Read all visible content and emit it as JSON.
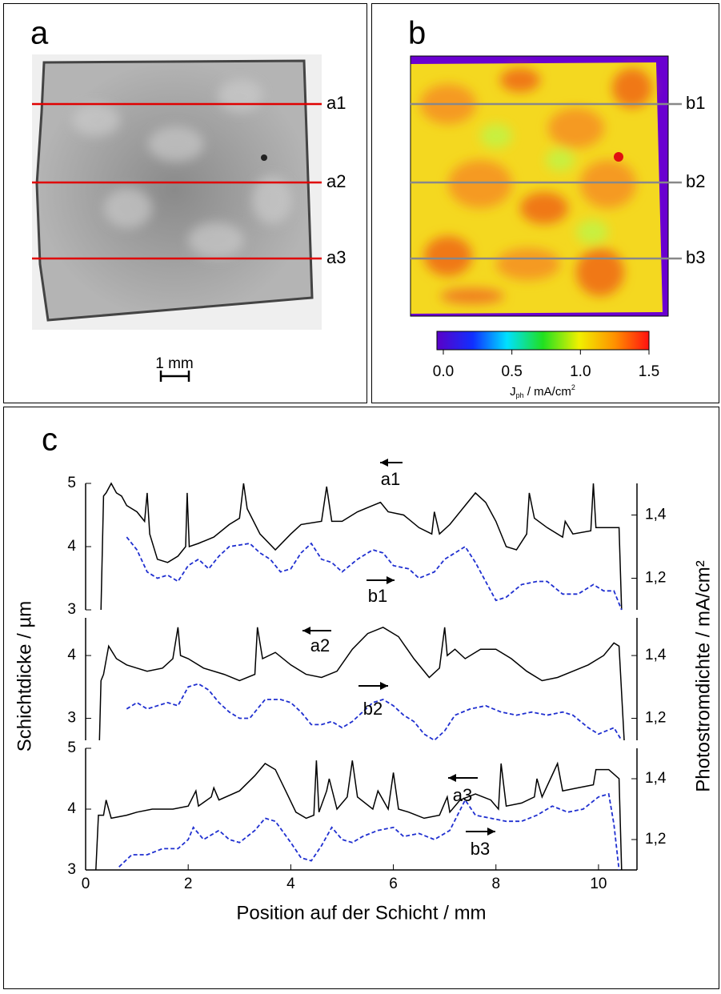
{
  "panel_a": {
    "label": "a",
    "lines": [
      "a1",
      "a2",
      "a3"
    ],
    "scale_bar": "1 mm"
  },
  "panel_b": {
    "label": "b",
    "lines": [
      "b1",
      "b2",
      "b3"
    ],
    "colorbar": {
      "clim": [
        0,
        1.5
      ],
      "ticks": [
        {
          "value": 0,
          "label": "0.0"
        },
        0.5,
        {
          "value": 1,
          "label": "1.0"
        },
        1.5
      ],
      "label_parts": [
        "J",
        "ph",
        " /  mA/cm",
        "2"
      ]
    }
  },
  "panel_c_label": "c",
  "chart_data": [
    {
      "type": "line",
      "xlim": [
        0,
        10.75
      ],
      "ylim": [
        3,
        5
      ],
      "yticks": [
        3,
        4,
        5
      ],
      "y2lim": [
        1.1,
        1.5
      ],
      "y2ticks": [
        {
          "value": 1.2,
          "label": "1,2"
        },
        {
          "value": 1.4,
          "label": "1,4"
        }
      ],
      "annotations": [
        "a1",
        "b1"
      ],
      "series": [
        {
          "color": "#000000",
          "style": "solid",
          "x": [
            0.3,
            0.35,
            0.4,
            0.5,
            0.6,
            0.7,
            0.8,
            1.0,
            1.15,
            1.2,
            1.25,
            1.4,
            1.6,
            1.8,
            1.95,
            1.98,
            2.02,
            2.2,
            2.5,
            2.8,
            3.0,
            3.08,
            3.15,
            3.4,
            3.7,
            4.0,
            4.2,
            4.6,
            4.7,
            4.8,
            5.0,
            5.3,
            5.6,
            5.75,
            5.9,
            6.2,
            6.5,
            6.75,
            6.8,
            6.9,
            7.1,
            7.4,
            7.6,
            7.8,
            8.0,
            8.2,
            8.4,
            8.6,
            8.65,
            8.75,
            9.0,
            9.3,
            9.35,
            9.5,
            9.85,
            9.9,
            9.95,
            10.2,
            10.4,
            10.45
          ],
          "values": [
            3.0,
            4.8,
            4.85,
            5.0,
            4.85,
            4.8,
            4.65,
            4.55,
            4.4,
            4.85,
            4.2,
            3.8,
            3.75,
            3.85,
            4.0,
            4.85,
            4.0,
            4.05,
            4.15,
            4.35,
            4.45,
            5.0,
            4.6,
            4.2,
            3.95,
            4.2,
            4.35,
            4.4,
            4.95,
            4.4,
            4.4,
            4.55,
            4.65,
            4.7,
            4.55,
            4.5,
            4.3,
            4.2,
            4.55,
            4.2,
            4.35,
            4.65,
            4.85,
            4.7,
            4.4,
            4.0,
            3.95,
            4.2,
            4.85,
            4.45,
            4.3,
            4.15,
            4.4,
            4.2,
            4.25,
            5.0,
            4.3,
            4.3,
            4.3,
            3.0
          ]
        },
        {
          "color": "#1f2fd0",
          "style": "dashed",
          "axis": "y2",
          "x": [
            0.8,
            1.0,
            1.2,
            1.4,
            1.6,
            1.8,
            2.0,
            2.2,
            2.4,
            2.6,
            2.8,
            3.2,
            3.4,
            3.6,
            3.8,
            4.0,
            4.2,
            4.4,
            4.6,
            4.8,
            5.0,
            5.3,
            5.6,
            5.8,
            6.0,
            6.3,
            6.5,
            6.8,
            7.0,
            7.4,
            7.6,
            7.8,
            8.0,
            8.2,
            8.5,
            8.8,
            9.0,
            9.3,
            9.6,
            9.9,
            10.1,
            10.3,
            10.45
          ],
          "values": [
            1.33,
            1.29,
            1.22,
            1.2,
            1.21,
            1.19,
            1.24,
            1.26,
            1.23,
            1.27,
            1.3,
            1.31,
            1.28,
            1.26,
            1.22,
            1.23,
            1.28,
            1.31,
            1.26,
            1.25,
            1.22,
            1.26,
            1.29,
            1.28,
            1.24,
            1.23,
            1.2,
            1.22,
            1.26,
            1.3,
            1.25,
            1.19,
            1.13,
            1.14,
            1.18,
            1.19,
            1.19,
            1.15,
            1.15,
            1.18,
            1.16,
            1.16,
            1.1
          ]
        }
      ]
    },
    {
      "type": "line",
      "xlim": [
        0,
        10.75
      ],
      "ylim": [
        2.65,
        4.6
      ],
      "yticks": [
        3,
        4
      ],
      "y2lim": [
        1.13,
        1.52
      ],
      "y2ticks": [
        {
          "value": 1.2,
          "label": "1,2"
        },
        {
          "value": 1.4,
          "label": "1,4"
        }
      ],
      "annotations": [
        "a2",
        "b2"
      ],
      "ylabel": "Schichtdicke  /  µm",
      "y2label": "Photostromdichte  /  mA/cm²",
      "series": [
        {
          "color": "#000000",
          "style": "solid",
          "x": [
            0.27,
            0.3,
            0.35,
            0.45,
            0.6,
            0.8,
            1.0,
            1.2,
            1.5,
            1.7,
            1.8,
            1.85,
            2.0,
            2.3,
            2.7,
            3.0,
            3.3,
            3.35,
            3.45,
            3.7,
            4.0,
            4.3,
            4.6,
            4.9,
            5.2,
            5.5,
            5.8,
            6.1,
            6.4,
            6.7,
            6.9,
            7.0,
            7.05,
            7.2,
            7.4,
            7.7,
            8.0,
            8.3,
            8.6,
            8.9,
            9.2,
            9.5,
            9.8,
            10.1,
            10.3,
            10.4,
            10.5
          ],
          "values": [
            2.65,
            3.6,
            3.7,
            4.15,
            3.95,
            3.85,
            3.8,
            3.75,
            3.8,
            3.95,
            4.45,
            4.0,
            3.95,
            3.8,
            3.7,
            3.6,
            3.7,
            4.45,
            3.95,
            4.05,
            3.85,
            3.7,
            3.65,
            3.75,
            4.1,
            4.35,
            4.45,
            4.3,
            3.95,
            3.65,
            3.8,
            4.45,
            4.0,
            4.1,
            3.95,
            4.1,
            4.1,
            3.95,
            3.75,
            3.6,
            3.65,
            3.75,
            3.85,
            4.0,
            4.2,
            4.15,
            2.65
          ]
        },
        {
          "color": "#1f2fd0",
          "style": "dashed",
          "axis": "y2",
          "x": [
            0.8,
            1.0,
            1.2,
            1.4,
            1.6,
            1.8,
            2.0,
            2.2,
            2.4,
            2.6,
            2.8,
            3.0,
            3.2,
            3.5,
            3.8,
            4.0,
            4.2,
            4.4,
            4.6,
            4.8,
            5.0,
            5.2,
            5.4,
            5.6,
            5.8,
            6.0,
            6.2,
            6.4,
            6.6,
            6.8,
            7.0,
            7.2,
            7.5,
            7.8,
            8.1,
            8.4,
            8.7,
            9.0,
            9.3,
            9.5,
            9.8,
            10.0,
            10.3,
            10.45
          ],
          "values": [
            1.23,
            1.25,
            1.23,
            1.24,
            1.25,
            1.24,
            1.3,
            1.31,
            1.29,
            1.25,
            1.22,
            1.2,
            1.2,
            1.26,
            1.26,
            1.25,
            1.22,
            1.18,
            1.18,
            1.19,
            1.17,
            1.19,
            1.22,
            1.25,
            1.26,
            1.24,
            1.21,
            1.19,
            1.15,
            1.13,
            1.16,
            1.21,
            1.23,
            1.24,
            1.22,
            1.21,
            1.22,
            1.21,
            1.22,
            1.21,
            1.17,
            1.15,
            1.17,
            1.13
          ]
        }
      ]
    },
    {
      "type": "line",
      "xlim": [
        0,
        10.75
      ],
      "ylim": [
        3,
        5
      ],
      "yticks": [
        3,
        4,
        5
      ],
      "y2lim": [
        1.1,
        1.5
      ],
      "y2ticks": [
        {
          "value": 1.2,
          "label": "1,2"
        },
        {
          "value": 1.4,
          "label": "1,4"
        }
      ],
      "annotations": [
        "a3",
        "b3"
      ],
      "xticks": [
        0,
        2,
        4,
        6,
        8,
        10
      ],
      "xlabel": "Position auf der Schicht  /  mm",
      "series": [
        {
          "color": "#000000",
          "style": "solid",
          "x": [
            0.2,
            0.25,
            0.35,
            0.4,
            0.5,
            0.8,
            1.0,
            1.3,
            1.7,
            2.0,
            2.15,
            2.2,
            2.45,
            2.5,
            2.6,
            3.0,
            3.3,
            3.5,
            3.7,
            3.9,
            4.1,
            4.3,
            4.45,
            4.5,
            4.55,
            4.7,
            4.75,
            4.9,
            5.1,
            5.2,
            5.3,
            5.6,
            5.7,
            5.9,
            6.0,
            6.1,
            6.3,
            6.6,
            6.9,
            7.05,
            7.1,
            7.3,
            7.6,
            7.9,
            8.05,
            8.1,
            8.2,
            8.5,
            8.75,
            8.8,
            8.9,
            9.2,
            9.3,
            9.6,
            9.9,
            9.95,
            10.2,
            10.4,
            10.45
          ],
          "values": [
            3.0,
            3.9,
            3.9,
            4.15,
            3.85,
            3.9,
            3.95,
            4.0,
            4.0,
            4.05,
            4.3,
            4.05,
            4.2,
            4.35,
            4.15,
            4.3,
            4.55,
            4.75,
            4.65,
            4.3,
            3.95,
            3.85,
            3.9,
            4.8,
            3.95,
            4.3,
            4.5,
            4.0,
            4.2,
            4.8,
            4.2,
            4.0,
            4.3,
            4.0,
            4.6,
            4.0,
            3.95,
            3.85,
            3.9,
            4.2,
            3.95,
            4.15,
            4.25,
            4.15,
            4.0,
            4.75,
            4.05,
            4.1,
            4.2,
            4.5,
            4.2,
            4.75,
            4.3,
            4.35,
            4.4,
            4.65,
            4.65,
            4.5,
            3.0
          ]
        },
        {
          "color": "#1f2fd0",
          "style": "dashed",
          "axis": "y2",
          "x": [
            0.65,
            0.9,
            1.2,
            1.5,
            1.8,
            2.0,
            2.1,
            2.3,
            2.6,
            2.8,
            3.0,
            3.3,
            3.5,
            3.7,
            4.0,
            4.2,
            4.4,
            4.6,
            4.8,
            5.0,
            5.2,
            5.4,
            5.7,
            6.0,
            6.2,
            6.5,
            6.8,
            7.1,
            7.4,
            7.6,
            7.9,
            8.2,
            8.5,
            8.8,
            9.1,
            9.4,
            9.7,
            10.0,
            10.2,
            10.3,
            10.4
          ],
          "values": [
            1.11,
            1.15,
            1.15,
            1.17,
            1.17,
            1.2,
            1.24,
            1.2,
            1.23,
            1.2,
            1.19,
            1.23,
            1.27,
            1.26,
            1.19,
            1.14,
            1.13,
            1.18,
            1.24,
            1.2,
            1.19,
            1.21,
            1.23,
            1.24,
            1.21,
            1.22,
            1.2,
            1.23,
            1.33,
            1.28,
            1.27,
            1.26,
            1.26,
            1.28,
            1.31,
            1.29,
            1.3,
            1.34,
            1.35,
            1.25,
            1.1
          ]
        }
      ]
    }
  ]
}
